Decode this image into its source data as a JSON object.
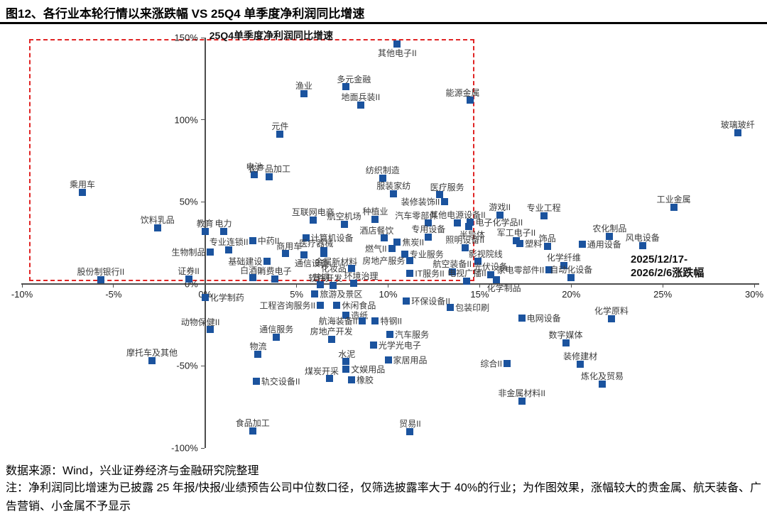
{
  "page": {
    "title": "图12、各行业本轮行情以来涨跌幅 VS 25Q4 单季度净利润同比增速"
  },
  "footer": {
    "source": "数据来源：Wind，兴业证券经济与金融研究院整理",
    "note": "注：净利润同比增速为已披露 25 年报/快报/业绩预告公司中位数口径，仅筛选披露率大于 40%的行业；为作图效果，涨幅较大的贵金属、航天装备、广告营销、小金属不予显示"
  },
  "chart_data": {
    "type": "scatter",
    "y_axis_label": "25Q4单季度净利润同比增速",
    "x_annotation_line1": "2025/12/17-",
    "x_annotation_line2": "2026/2/6涨跌幅",
    "xlim": [
      -10,
      30
    ],
    "ylim": [
      -100,
      150
    ],
    "x_ticks": [
      -10,
      -5,
      0,
      5,
      10,
      15,
      20,
      25,
      30
    ],
    "y_ticks": [
      150,
      100,
      50,
      0,
      -50,
      -100
    ],
    "grid": false,
    "marker_color": "#1b539e",
    "label_color": "#3a3a3a",
    "dashed_box": {
      "x0": -9.6,
      "x1": 14.7,
      "y0": 1.5,
      "y1": 149.0,
      "color": "#e02424"
    },
    "points": [
      {
        "label": "其他电子II",
        "x": 10.5,
        "y": 146.0,
        "lp": "below"
      },
      {
        "label": "渔业",
        "x": 5.4,
        "y": 116.0,
        "lp": "above"
      },
      {
        "label": "多元金融",
        "x": 7.7,
        "y": 120.0,
        "lp": "above-right"
      },
      {
        "label": "地面兵装II",
        "x": 8.5,
        "y": 109.0,
        "lp": "above"
      },
      {
        "label": "能源金属",
        "x": 14.5,
        "y": 112.0,
        "lp": "above-left"
      },
      {
        "label": "元件",
        "x": 4.1,
        "y": 91.0,
        "lp": "above"
      },
      {
        "label": "玻璃玻纤",
        "x": 29.1,
        "y": 92.0,
        "lp": "above"
      },
      {
        "label": "电池",
        "x": 2.7,
        "y": 66.6,
        "lp": "above"
      },
      {
        "label": "农产品加工",
        "x": 3.5,
        "y": 65.3,
        "lp": "above"
      },
      {
        "label": "纺织制造",
        "x": 9.7,
        "y": 64.4,
        "lp": "above"
      },
      {
        "label": "服装家纺",
        "x": 10.3,
        "y": 54.9,
        "lp": "above"
      },
      {
        "label": "乘用车",
        "x": -6.7,
        "y": 55.8,
        "lp": "above"
      },
      {
        "label": "医疗服务",
        "x": 12.8,
        "y": 54.5,
        "lp": "above-right"
      },
      {
        "label": "装修装饰II",
        "x": 13.1,
        "y": 50.2,
        "lp": "left"
      },
      {
        "label": "工业金属",
        "x": 25.6,
        "y": 46.7,
        "lp": "above"
      },
      {
        "label": "游戏II",
        "x": 16.1,
        "y": 42.0,
        "lp": "above"
      },
      {
        "label": "专业工程",
        "x": 18.5,
        "y": 41.5,
        "lp": "above"
      },
      {
        "label": "互联网电商",
        "x": 5.9,
        "y": 38.9,
        "lp": "above"
      },
      {
        "label": "种植业",
        "x": 9.3,
        "y": 39.4,
        "lp": "above"
      },
      {
        "label": "航空机场",
        "x": 7.6,
        "y": 36.3,
        "lp": "above"
      },
      {
        "label": "汽车零部件",
        "x": 12.2,
        "y": 37.2,
        "lp": "above-left"
      },
      {
        "label": "其他电源设备II",
        "x": 13.8,
        "y": 37.2,
        "lp": "above"
      },
      {
        "label": "电子化学品II",
        "x": 14.5,
        "y": 37.6,
        "lp": "right"
      },
      {
        "label": "饮料乳品",
        "x": -2.6,
        "y": 34.2,
        "lp": "above"
      },
      {
        "label": "教育",
        "x": 0.0,
        "y": 32.0,
        "lp": "above"
      },
      {
        "label": "电力",
        "x": 1.0,
        "y": 32.0,
        "lp": "above"
      },
      {
        "label": "半导体",
        "x": 14.4,
        "y": 35.0,
        "lp": "below-right"
      },
      {
        "label": "酒店餐饮",
        "x": 9.8,
        "y": 28.1,
        "lp": "above-left"
      },
      {
        "label": "专用设备",
        "x": 12.2,
        "y": 28.5,
        "lp": "above"
      },
      {
        "label": "中药II",
        "x": 2.6,
        "y": 26.4,
        "lp": "right"
      },
      {
        "label": "计算机设备",
        "x": 5.5,
        "y": 28.1,
        "lp": "right"
      },
      {
        "label": "专业连锁II",
        "x": 1.3,
        "y": 20.8,
        "lp": "above"
      },
      {
        "label": "照明设备II",
        "x": 14.2,
        "y": 22.1,
        "lp": "above"
      },
      {
        "label": "军工电子II",
        "x": 17.0,
        "y": 26.4,
        "lp": "above"
      },
      {
        "label": "塑料",
        "x": 17.2,
        "y": 24.7,
        "lp": "right"
      },
      {
        "label": "饰品",
        "x": 18.7,
        "y": 22.9,
        "lp": "above"
      },
      {
        "label": "农化制品",
        "x": 22.1,
        "y": 29.0,
        "lp": "above"
      },
      {
        "label": "风电设备",
        "x": 23.9,
        "y": 23.4,
        "lp": "above"
      },
      {
        "label": "通用设备",
        "x": 20.6,
        "y": 24.2,
        "lp": "right"
      },
      {
        "label": "生物制品",
        "x": 0.3,
        "y": 19.5,
        "lp": "left"
      },
      {
        "label": "焦炭II",
        "x": 10.5,
        "y": 25.5,
        "lp": "right"
      },
      {
        "label": "燃气II",
        "x": 10.2,
        "y": 21.6,
        "lp": "left"
      },
      {
        "label": "专业服务",
        "x": 10.9,
        "y": 18.2,
        "lp": "right"
      },
      {
        "label": "商用车",
        "x": 4.4,
        "y": 18.6,
        "lp": "above-right"
      },
      {
        "label": "医疗器械",
        "x": 6.5,
        "y": 20.3,
        "lp": "above-left"
      },
      {
        "label": "基础建设",
        "x": 3.4,
        "y": 13.8,
        "lp": "left"
      },
      {
        "label": "通信设备",
        "x": 5.4,
        "y": 17.7,
        "lp": "below-right"
      },
      {
        "label": "金属新材料",
        "x": 6.5,
        "y": 18.6,
        "lp": "below-right"
      },
      {
        "label": "白酒II",
        "x": 2.6,
        "y": 3.9,
        "lp": "above-left"
      },
      {
        "label": "消费电子",
        "x": 3.8,
        "y": 3.0,
        "lp": "above"
      },
      {
        "label": "证券II",
        "x": -0.9,
        "y": 3.0,
        "lp": "above"
      },
      {
        "label": "股份制银行II",
        "x": -5.7,
        "y": 2.6,
        "lp": "above"
      },
      {
        "label": "普钢",
        "x": 6.3,
        "y": -0.4,
        "lp": "above-left"
      },
      {
        "label": "软件开发",
        "x": 7.0,
        "y": -0.9,
        "lp": "above-left"
      },
      {
        "label": "环境治理",
        "x": 8.1,
        "y": 0.4,
        "lp": "above-right"
      },
      {
        "label": "化妆品",
        "x": 8.0,
        "y": 9.5,
        "lp": "left"
      },
      {
        "label": "房地产服务",
        "x": 11.2,
        "y": 14.3,
        "lp": "left"
      },
      {
        "label": "IT服务II",
        "x": 11.2,
        "y": 6.5,
        "lp": "right"
      },
      {
        "label": "航空装备II",
        "x": 13.5,
        "y": 7.4,
        "lp": "above"
      },
      {
        "label": "电视广播II",
        "x": 14.3,
        "y": 1.7,
        "lp": "above"
      },
      {
        "label": "影视院线",
        "x": 14.9,
        "y": 13.8,
        "lp": "above-right"
      },
      {
        "label": "光伏设备",
        "x": 15.6,
        "y": 5.6,
        "lp": "above"
      },
      {
        "label": "家电零部件II",
        "x": 18.8,
        "y": 8.7,
        "lp": "left"
      },
      {
        "label": "化学纤维",
        "x": 19.6,
        "y": 11.2,
        "lp": "above"
      },
      {
        "label": "自动化设备",
        "x": 20.0,
        "y": 3.9,
        "lp": "above"
      },
      {
        "label": "化学制品",
        "x": 15.9,
        "y": 2.6,
        "lp": "below-right"
      },
      {
        "label": "化学制药",
        "x": 0.0,
        "y": -8.2,
        "lp": "right"
      },
      {
        "label": "旅游及景区",
        "x": 6.0,
        "y": -6.1,
        "lp": "right"
      },
      {
        "label": "工程咨询服务II",
        "x": 6.3,
        "y": -13.0,
        "lp": "left"
      },
      {
        "label": "休闲食品",
        "x": 7.2,
        "y": -13.0,
        "lp": "right"
      },
      {
        "label": "环保设备II",
        "x": 11.0,
        "y": -10.4,
        "lp": "right"
      },
      {
        "label": "包装印刷",
        "x": 13.4,
        "y": -14.3,
        "lp": "right"
      },
      {
        "label": "造纸",
        "x": 7.7,
        "y": -19.0,
        "lp": "right"
      },
      {
        "label": "航海装备II",
        "x": 8.6,
        "y": -22.5,
        "lp": "left"
      },
      {
        "label": "特钢II",
        "x": 9.3,
        "y": -22.5,
        "lp": "right"
      },
      {
        "label": "电网设备",
        "x": 17.3,
        "y": -20.8,
        "lp": "right"
      },
      {
        "label": "化学原料",
        "x": 22.2,
        "y": -21.2,
        "lp": "above"
      },
      {
        "label": "动物保健II",
        "x": 0.3,
        "y": -27.7,
        "lp": "above-left"
      },
      {
        "label": "汽车服务",
        "x": 10.1,
        "y": -30.7,
        "lp": "right"
      },
      {
        "label": "通信服务",
        "x": 3.9,
        "y": -32.4,
        "lp": "above"
      },
      {
        "label": "房地产开发",
        "x": 6.9,
        "y": -33.7,
        "lp": "above"
      },
      {
        "label": "光学光电子",
        "x": 9.2,
        "y": -37.2,
        "lp": "right"
      },
      {
        "label": "数字媒体",
        "x": 19.7,
        "y": -35.9,
        "lp": "above"
      },
      {
        "label": "摩托车及其他",
        "x": -2.9,
        "y": -46.7,
        "lp": "above"
      },
      {
        "label": "物流",
        "x": 2.9,
        "y": -42.8,
        "lp": "above"
      },
      {
        "label": "水泥",
        "x": 7.7,
        "y": -47.1,
        "lp": "above-left"
      },
      {
        "label": "家居用品",
        "x": 10.0,
        "y": -46.3,
        "lp": "right"
      },
      {
        "label": "综合II",
        "x": 16.5,
        "y": -48.4,
        "lp": "left"
      },
      {
        "label": "装修建材",
        "x": 20.5,
        "y": -48.9,
        "lp": "above"
      },
      {
        "label": "文娱用品",
        "x": 7.7,
        "y": -51.9,
        "lp": "right"
      },
      {
        "label": "煤炭开采",
        "x": 6.8,
        "y": -57.5,
        "lp": "above-left"
      },
      {
        "label": "橡胶",
        "x": 8.0,
        "y": -58.4,
        "lp": "right"
      },
      {
        "label": "轨交设备II",
        "x": 2.8,
        "y": -59.3,
        "lp": "right"
      },
      {
        "label": "炼化及贸易",
        "x": 21.7,
        "y": -61.0,
        "lp": "above"
      },
      {
        "label": "非金属材料II",
        "x": 17.3,
        "y": -71.4,
        "lp": "above"
      },
      {
        "label": "食品加工",
        "x": 2.6,
        "y": -89.5,
        "lp": "above"
      },
      {
        "label": "贸易II",
        "x": 11.2,
        "y": -90.0,
        "lp": "above"
      }
    ]
  }
}
